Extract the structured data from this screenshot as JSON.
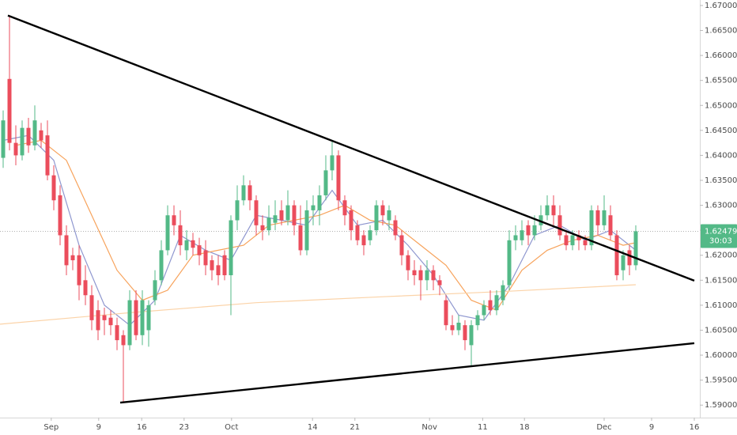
{
  "chart_data": {
    "type": "candlestick",
    "up_color": "#53b987",
    "down_color": "#eb4d5c",
    "open": [
      1.6395,
      1.6553,
      1.6425,
      1.64,
      1.6455,
      1.642,
      1.645,
      1.644,
      1.636,
      1.632,
      1.624,
      1.62,
      1.62,
      1.615,
      1.612,
      1.609,
      1.608,
      1.6075,
      1.606,
      1.604,
      1.602,
      1.611,
      1.604,
      1.605,
      1.611,
      1.615,
      1.621,
      1.628,
      1.626,
      1.621,
      1.623,
      1.622,
      1.621,
      1.619,
      1.618,
      1.62,
      1.616,
      1.627,
      1.631,
      1.634,
      1.631,
      1.626,
      1.625,
      1.6265,
      1.629,
      1.627,
      1.63,
      1.626,
      1.621,
      1.629,
      1.629,
      1.632,
      1.637,
      1.64,
      1.631,
      1.629,
      1.626,
      1.624,
      1.623,
      1.625,
      1.63,
      1.627,
      1.627,
      1.624,
      1.62,
      1.617,
      1.617,
      1.615,
      1.617,
      1.615,
      1.611,
      1.606,
      1.605,
      1.606,
      1.602,
      1.606,
      1.608,
      1.611,
      1.609,
      1.611,
      1.614,
      1.623,
      1.623,
      1.626,
      1.624,
      1.626,
      1.628,
      1.63,
      1.628,
      1.624,
      1.622,
      1.624,
      1.623,
      1.622,
      1.629,
      1.626,
      1.628,
      1.624,
      1.617,
      1.621,
      1.618
    ],
    "high": [
      1.649,
      1.668,
      1.646,
      1.647,
      1.6475,
      1.65,
      1.6465,
      1.647,
      1.638,
      1.634,
      1.626,
      1.6215,
      1.622,
      1.618,
      1.614,
      1.611,
      1.6095,
      1.609,
      1.6075,
      1.605,
      1.613,
      1.613,
      1.613,
      1.611,
      1.617,
      1.623,
      1.63,
      1.63,
      1.629,
      1.625,
      1.6245,
      1.6235,
      1.623,
      1.62,
      1.62,
      1.621,
      1.628,
      1.634,
      1.636,
      1.635,
      1.632,
      1.628,
      1.63,
      1.631,
      1.631,
      1.633,
      1.631,
      1.63,
      1.631,
      1.632,
      1.634,
      1.64,
      1.643,
      1.641,
      1.632,
      1.63,
      1.627,
      1.625,
      1.626,
      1.631,
      1.631,
      1.63,
      1.628,
      1.625,
      1.621,
      1.619,
      1.618,
      1.619,
      1.618,
      1.616,
      1.612,
      1.608,
      1.608,
      1.607,
      1.607,
      1.609,
      1.611,
      1.613,
      1.613,
      1.615,
      1.625,
      1.626,
      1.627,
      1.627,
      1.628,
      1.63,
      1.632,
      1.632,
      1.63,
      1.625,
      1.625,
      1.625,
      1.624,
      1.63,
      1.63,
      1.632,
      1.63,
      1.625,
      1.621,
      1.622,
      1.626
    ],
    "low": [
      1.6375,
      1.641,
      1.638,
      1.639,
      1.6405,
      1.641,
      1.6415,
      1.635,
      1.629,
      1.622,
      1.616,
      1.617,
      1.611,
      1.61,
      1.605,
      1.603,
      1.604,
      1.604,
      1.601,
      1.5905,
      1.601,
      1.603,
      1.602,
      1.6017,
      1.61,
      1.614,
      1.62,
      1.624,
      1.62,
      1.619,
      1.62,
      1.618,
      1.616,
      1.615,
      1.614,
      1.615,
      1.608,
      1.625,
      1.63,
      1.629,
      1.624,
      1.623,
      1.624,
      1.625,
      1.626,
      1.626,
      1.624,
      1.62,
      1.62,
      1.626,
      1.626,
      1.631,
      1.635,
      1.629,
      1.626,
      1.623,
      1.622,
      1.62,
      1.622,
      1.624,
      1.626,
      1.625,
      1.623,
      1.618,
      1.615,
      1.614,
      1.611,
      1.613,
      1.613,
      1.612,
      1.605,
      1.604,
      1.604,
      1.601,
      1.5979,
      1.605,
      1.607,
      1.608,
      1.608,
      1.61,
      1.613,
      1.621,
      1.622,
      1.622,
      1.623,
      1.625,
      1.627,
      1.626,
      1.623,
      1.621,
      1.621,
      1.621,
      1.621,
      1.621,
      1.624,
      1.625,
      1.623,
      1.615,
      1.615,
      1.616,
      1.617
    ],
    "close": [
      1.647,
      1.6425,
      1.64,
      1.6455,
      1.642,
      1.647,
      1.643,
      1.636,
      1.631,
      1.624,
      1.618,
      1.619,
      1.614,
      1.612,
      1.607,
      1.605,
      1.607,
      1.606,
      1.603,
      1.602,
      1.611,
      1.604,
      1.611,
      1.61,
      1.615,
      1.621,
      1.628,
      1.626,
      1.622,
      1.623,
      1.6215,
      1.62,
      1.618,
      1.617,
      1.616,
      1.616,
      1.627,
      1.631,
      1.634,
      1.631,
      1.626,
      1.625,
      1.6275,
      1.628,
      1.627,
      1.63,
      1.626,
      1.621,
      1.629,
      1.63,
      1.632,
      1.637,
      1.64,
      1.631,
      1.628,
      1.625,
      1.623,
      1.622,
      1.625,
      1.63,
      1.628,
      1.629,
      1.624,
      1.62,
      1.617,
      1.616,
      1.615,
      1.617,
      1.615,
      1.614,
      1.606,
      1.605,
      1.6065,
      1.603,
      1.606,
      1.608,
      1.61,
      1.609,
      1.612,
      1.614,
      1.623,
      1.624,
      1.625,
      1.624,
      1.626,
      1.628,
      1.63,
      1.628,
      1.624,
      1.622,
      1.624,
      1.623,
      1.622,
      1.629,
      1.626,
      1.629,
      1.624,
      1.616,
      1.62,
      1.618,
      1.6248
    ],
    "series": [
      {
        "color": "#8f97cf",
        "x": [
          0,
          4,
          8,
          12,
          16,
          20,
          24,
          28,
          32,
          36,
          40,
          44,
          48,
          52,
          56,
          60,
          64,
          68,
          72,
          76,
          80,
          84,
          88,
          92,
          96,
          100
        ],
        "values": [
          1.643,
          1.644,
          1.639,
          1.622,
          1.61,
          1.606,
          1.611,
          1.624,
          1.621,
          1.619,
          1.628,
          1.627,
          1.626,
          1.633,
          1.626,
          1.627,
          1.622,
          1.616,
          1.608,
          1.607,
          1.614,
          1.624,
          1.626,
          1.623,
          1.625,
          1.621
        ]
      },
      {
        "color": "#f7a35c",
        "x": [
          2,
          6,
          10,
          14,
          18,
          22,
          26,
          30,
          34,
          38,
          42,
          46,
          50,
          54,
          58,
          62,
          66,
          70,
          74,
          78,
          82,
          86,
          90,
          94,
          98,
          100
        ],
        "values": [
          1.642,
          1.643,
          1.639,
          1.628,
          1.617,
          1.611,
          1.613,
          1.62,
          1.621,
          1.622,
          1.626,
          1.627,
          1.628,
          1.63,
          1.627,
          1.626,
          1.622,
          1.618,
          1.611,
          1.609,
          1.617,
          1.621,
          1.623,
          1.624,
          1.622,
          1.6225
        ]
      },
      {
        "color": "#fbd3a8",
        "x": [
          -0.5,
          20,
          40,
          60,
          80,
          100
        ],
        "values": [
          1.6062,
          1.6085,
          1.6105,
          1.6117,
          1.6128,
          1.6141
        ]
      }
    ],
    "trendlines": [
      {
        "color": "#000000",
        "x": [
          0.75,
          109.25
        ],
        "values": [
          1.668,
          1.6149
        ]
      },
      {
        "color": "#000000",
        "x": [
          18.5,
          109.25
        ],
        "values": [
          1.5905,
          1.6024
        ]
      }
    ],
    "last_price": 1.62479,
    "last_price_color": "#53b987",
    "countdown": "30:03",
    "xlim": [
      -0.5,
      110.125
    ],
    "xticks": [
      {
        "value": 7.6,
        "label": "Sep"
      },
      {
        "value": 15.1,
        "label": "9"
      },
      {
        "value": 21.9,
        "label": "16"
      },
      {
        "value": 28.6,
        "label": "23"
      },
      {
        "value": 36.1,
        "label": "Oct"
      },
      {
        "value": 48.9,
        "label": "14"
      },
      {
        "value": 55.6,
        "label": "21"
      },
      {
        "value": 67.4,
        "label": "Nov"
      },
      {
        "value": 75.8,
        "label": "11"
      },
      {
        "value": 82.4,
        "label": "18"
      },
      {
        "value": 95,
        "label": "Dec"
      },
      {
        "value": 102.5,
        "label": "9"
      },
      {
        "value": 109.25,
        "label": "16"
      }
    ],
    "ylim": [
      1.5875,
      1.6711
    ],
    "yticks": [
      {
        "value": 1.59,
        "label": "1.59000"
      },
      {
        "value": 1.595,
        "label": "1.59500"
      },
      {
        "value": 1.6,
        "label": "1.60000"
      },
      {
        "value": 1.605,
        "label": "1.60500"
      },
      {
        "value": 1.61,
        "label": "1.61000"
      },
      {
        "value": 1.615,
        "label": "1.61500"
      },
      {
        "value": 1.62,
        "label": "1.62000"
      },
      {
        "value": 1.625,
        "label": "1.62500"
      },
      {
        "value": 1.63,
        "label": "1.63000"
      },
      {
        "value": 1.635,
        "label": "1.63500"
      },
      {
        "value": 1.64,
        "label": "1.64000"
      },
      {
        "value": 1.645,
        "label": "1.64500"
      },
      {
        "value": 1.65,
        "label": "1.65000"
      },
      {
        "value": 1.655,
        "label": "1.65500"
      },
      {
        "value": 1.66,
        "label": "1.66000"
      },
      {
        "value": 1.665,
        "label": "1.66500"
      },
      {
        "value": 1.67,
        "label": "1.67000"
      }
    ]
  }
}
